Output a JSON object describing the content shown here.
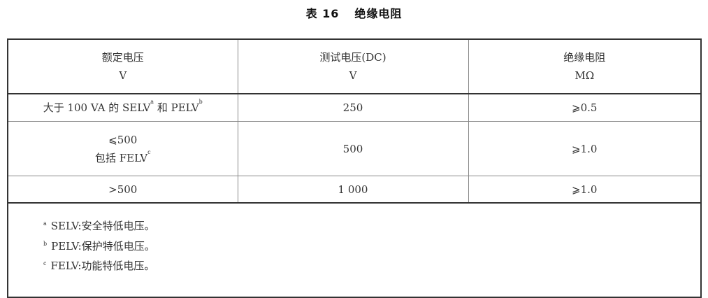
{
  "title": {
    "label": "表 16",
    "text": "绝缘电阻"
  },
  "table": {
    "headers": [
      {
        "name": "额定电压",
        "unit": "V"
      },
      {
        "name": "测试电压(DC)",
        "unit": "V"
      },
      {
        "name": "绝缘电阻",
        "unit": "MΩ"
      }
    ],
    "rows": [
      {
        "rated_a": "大于 100 VA 的 SELV",
        "sup_a": "a",
        "rated_mid": " 和 PELV",
        "sup_b": "b",
        "test": "250",
        "resistance": "⩾0.5"
      },
      {
        "rated_line1": "⩽500",
        "rated_line2": "包括 FELV",
        "sup_c": "c",
        "test": "500",
        "resistance": "⩾1.0"
      },
      {
        "rated": ">500",
        "test": "1 000",
        "resistance": "⩾1.0"
      }
    ],
    "footnotes": [
      {
        "mark": "a",
        "text": "SELV:安全特低电压。"
      },
      {
        "mark": "b",
        "text": "PELV:保护特低电压。"
      },
      {
        "mark": "c",
        "text": "FELV:功能特低电压。"
      }
    ]
  }
}
